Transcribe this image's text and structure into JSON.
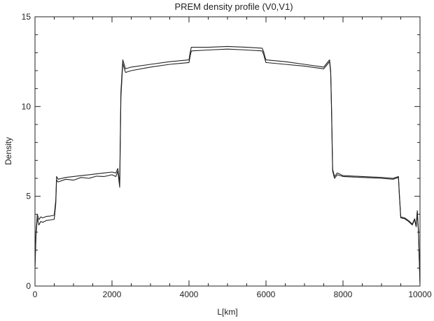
{
  "chart_data": {
    "type": "line",
    "title": "PREM density profile (V0,V1)",
    "xlabel": "L[km]",
    "ylabel": "Density",
    "xlim": [
      0,
      10000
    ],
    "ylim": [
      0,
      15
    ],
    "x_ticks": [
      0,
      2000,
      4000,
      6000,
      8000,
      10000
    ],
    "y_ticks": [
      0,
      5,
      10,
      15
    ],
    "grid": false,
    "legend": "none",
    "line_color": "#222222",
    "series": [
      {
        "x": [
          0,
          25,
          60,
          100,
          150,
          200,
          300,
          400,
          500,
          540,
          560,
          600,
          800,
          1000,
          1200,
          1400,
          1600,
          1800,
          2000,
          2100,
          2150,
          2200,
          2230,
          2280,
          2350,
          2500,
          3000,
          3500,
          4000,
          4030,
          4060,
          4500,
          5000,
          5500,
          5900,
          5940,
          5970,
          6000,
          6500,
          7000,
          7500,
          7650,
          7680,
          7700,
          7730,
          7780,
          7850,
          8000,
          8500,
          9000,
          9300,
          9440,
          9460,
          9500,
          9600,
          9700,
          9800,
          9860,
          9900,
          9930,
          9960,
          9980,
          10000
        ],
        "values": [
          1.0,
          2.8,
          3.8,
          3.4,
          3.6,
          3.55,
          3.65,
          3.68,
          3.72,
          4.6,
          5.9,
          5.8,
          5.95,
          5.9,
          6.05,
          6.0,
          6.12,
          6.1,
          6.2,
          6.1,
          6.4,
          5.5,
          10.5,
          12.4,
          11.9,
          12.0,
          12.2,
          12.35,
          12.45,
          12.8,
          13.1,
          13.15,
          13.2,
          13.15,
          13.1,
          12.9,
          12.65,
          12.45,
          12.35,
          12.25,
          12.1,
          12.5,
          11.9,
          10.0,
          6.4,
          6.0,
          6.2,
          6.1,
          6.05,
          6.0,
          5.95,
          6.05,
          5.2,
          3.8,
          3.75,
          3.6,
          3.4,
          3.7,
          3.3,
          4.1,
          3.0,
          1.5,
          0.1
        ]
      },
      {
        "x": [
          0,
          25,
          60,
          100,
          150,
          200,
          300,
          400,
          500,
          540,
          560,
          600,
          800,
          1000,
          1200,
          1400,
          1600,
          1800,
          2000,
          2100,
          2150,
          2200,
          2230,
          2280,
          2350,
          2500,
          3000,
          3500,
          4000,
          4030,
          4060,
          4500,
          5000,
          5500,
          5900,
          5940,
          5970,
          6000,
          6500,
          7000,
          7500,
          7650,
          7680,
          7700,
          7730,
          7780,
          7850,
          8000,
          8500,
          9000,
          9300,
          9440,
          9460,
          9500,
          9600,
          9700,
          9800,
          9860,
          9900,
          9930,
          9960,
          9980,
          10000
        ],
        "values": [
          1.1,
          3.0,
          4.0,
          3.7,
          3.85,
          3.8,
          3.88,
          3.9,
          3.95,
          4.8,
          6.1,
          5.95,
          6.05,
          6.1,
          6.15,
          6.2,
          6.25,
          6.3,
          6.35,
          6.3,
          6.55,
          5.7,
          10.8,
          12.6,
          12.1,
          12.2,
          12.35,
          12.5,
          12.6,
          13.0,
          13.3,
          13.3,
          13.35,
          13.3,
          13.25,
          13.05,
          12.8,
          12.6,
          12.5,
          12.35,
          12.2,
          12.6,
          12.0,
          10.2,
          6.5,
          6.1,
          6.3,
          6.15,
          6.1,
          6.05,
          6.0,
          6.1,
          5.3,
          3.85,
          3.8,
          3.65,
          3.45,
          3.75,
          3.35,
          4.2,
          3.1,
          1.6,
          0.15
        ]
      }
    ]
  }
}
